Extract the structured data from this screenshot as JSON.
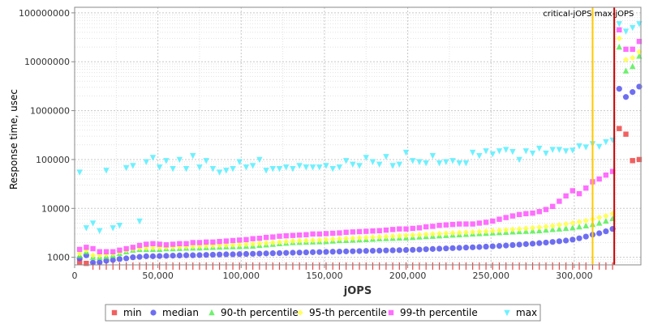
{
  "chart_data": {
    "type": "scatter",
    "title": "",
    "xlabel": "jOPS",
    "ylabel": "Response time, usec",
    "xlim": [
      0,
      340000
    ],
    "ylim": [
      700,
      130000000
    ],
    "yscale": "log",
    "grid": true,
    "legend_position": "bottom",
    "x_ticks": [
      0,
      50000,
      100000,
      150000,
      200000,
      250000,
      300000
    ],
    "x_tick_labels": [
      "0",
      "50,000",
      "100,000",
      "150,000",
      "200,000",
      "250,000",
      "300,000"
    ],
    "y_ticks": [
      1000,
      10000,
      100000,
      1000000,
      10000000,
      100000000
    ],
    "y_tick_labels": [
      "1000",
      "10000",
      "100000",
      "1000000",
      "10000000",
      "100000000"
    ],
    "markers": [
      {
        "name": "critical-jOPS",
        "label": "critical-jOPS",
        "x": 311000,
        "color": "#ffc800"
      },
      {
        "name": "max-jOPS",
        "label": "max-jOPS",
        "x": 324000,
        "color": "#cc0000"
      }
    ],
    "series": [
      {
        "name": "min",
        "symbol": "square",
        "color": "#ee4444",
        "x": [
          3000,
          7000,
          11000,
          15000,
          19000,
          23000,
          27000,
          31000,
          35000,
          39000,
          43000,
          47000,
          51000,
          55000,
          59000,
          63000,
          67000,
          71000,
          75000,
          79000,
          83000,
          87000,
          91000,
          95000,
          99000,
          103000,
          107000,
          111000,
          115000,
          119000,
          123000,
          127000,
          131000,
          135000,
          139000,
          143000,
          147000,
          151000,
          155000,
          159000,
          163000,
          167000,
          171000,
          175000,
          179000,
          183000,
          187000,
          191000,
          195000,
          199000,
          203000,
          207000,
          211000,
          215000,
          219000,
          223000,
          227000,
          231000,
          235000,
          239000,
          243000,
          247000,
          251000,
          255000,
          259000,
          263000,
          267000,
          271000,
          275000,
          279000,
          283000,
          287000,
          291000,
          295000,
          299000,
          303000,
          307000,
          311000,
          315000,
          319000,
          323000,
          327000,
          331000,
          335000,
          339000
        ],
        "values": [
          800,
          750,
          700,
          700,
          700,
          700,
          700,
          700,
          700,
          700,
          700,
          700,
          700,
          700,
          700,
          700,
          700,
          700,
          700,
          700,
          700,
          700,
          700,
          700,
          700,
          700,
          700,
          700,
          700,
          700,
          700,
          700,
          700,
          700,
          700,
          700,
          700,
          700,
          700,
          700,
          700,
          700,
          700,
          700,
          700,
          700,
          700,
          700,
          700,
          700,
          700,
          700,
          700,
          700,
          700,
          700,
          700,
          700,
          700,
          700,
          700,
          700,
          700,
          700,
          700,
          700,
          700,
          700,
          700,
          700,
          700,
          700,
          700,
          700,
          700,
          700,
          700,
          700,
          700,
          700,
          700,
          430000,
          330000,
          95000,
          100000
        ]
      },
      {
        "name": "median",
        "symbol": "circle",
        "color": "#5555ee",
        "x": [
          3000,
          7000,
          11000,
          15000,
          19000,
          23000,
          27000,
          31000,
          35000,
          39000,
          43000,
          47000,
          51000,
          55000,
          59000,
          63000,
          67000,
          71000,
          75000,
          79000,
          83000,
          87000,
          91000,
          95000,
          99000,
          103000,
          107000,
          111000,
          115000,
          119000,
          123000,
          127000,
          131000,
          135000,
          139000,
          143000,
          147000,
          151000,
          155000,
          159000,
          163000,
          167000,
          171000,
          175000,
          179000,
          183000,
          187000,
          191000,
          195000,
          199000,
          203000,
          207000,
          211000,
          215000,
          219000,
          223000,
          227000,
          231000,
          235000,
          239000,
          243000,
          247000,
          251000,
          255000,
          259000,
          263000,
          267000,
          271000,
          275000,
          279000,
          283000,
          287000,
          291000,
          295000,
          299000,
          303000,
          307000,
          311000,
          315000,
          319000,
          323000,
          327000,
          331000,
          335000,
          339000
        ],
        "values": [
          950,
          1100,
          780,
          790,
          850,
          880,
          920,
          950,
          1000,
          1020,
          1050,
          1050,
          1060,
          1070,
          1080,
          1090,
          1100,
          1100,
          1110,
          1120,
          1130,
          1140,
          1150,
          1150,
          1160,
          1170,
          1180,
          1190,
          1200,
          1210,
          1220,
          1230,
          1240,
          1250,
          1260,
          1270,
          1280,
          1290,
          1300,
          1310,
          1320,
          1330,
          1340,
          1350,
          1360,
          1370,
          1380,
          1390,
          1400,
          1410,
          1420,
          1440,
          1460,
          1480,
          1500,
          1520,
          1540,
          1560,
          1580,
          1600,
          1620,
          1650,
          1680,
          1710,
          1740,
          1780,
          1820,
          1860,
          1900,
          1950,
          2000,
          2060,
          2130,
          2200,
          2300,
          2450,
          2650,
          2900,
          3100,
          3400,
          3800,
          2800000,
          1900000,
          2400000,
          3100000
        ]
      },
      {
        "name": "90-th percentile",
        "symbol": "triangle-up",
        "color": "#55ee55",
        "x": [
          3000,
          7000,
          11000,
          15000,
          19000,
          23000,
          27000,
          31000,
          35000,
          39000,
          43000,
          47000,
          51000,
          55000,
          59000,
          63000,
          67000,
          71000,
          75000,
          79000,
          83000,
          87000,
          91000,
          95000,
          99000,
          103000,
          107000,
          111000,
          115000,
          119000,
          123000,
          127000,
          131000,
          135000,
          139000,
          143000,
          147000,
          151000,
          155000,
          159000,
          163000,
          167000,
          171000,
          175000,
          179000,
          183000,
          187000,
          191000,
          195000,
          199000,
          203000,
          207000,
          211000,
          215000,
          219000,
          223000,
          227000,
          231000,
          235000,
          239000,
          243000,
          247000,
          251000,
          255000,
          259000,
          263000,
          267000,
          271000,
          275000,
          279000,
          283000,
          287000,
          291000,
          295000,
          299000,
          303000,
          307000,
          311000,
          315000,
          319000,
          323000,
          327000,
          331000,
          335000,
          339000
        ],
        "values": [
          1100,
          1300,
          1000,
          1000,
          1050,
          1100,
          1200,
          1300,
          1400,
          1450,
          1450,
          1450,
          1450,
          1500,
          1500,
          1520,
          1540,
          1550,
          1560,
          1580,
          1600,
          1620,
          1640,
          1650,
          1660,
          1680,
          1700,
          1750,
          1800,
          1850,
          1900,
          1950,
          2000,
          2020,
          2040,
          2060,
          2080,
          2100,
          2150,
          2200,
          2220,
          2250,
          2280,
          2300,
          2350,
          2400,
          2420,
          2450,
          2480,
          2500,
          2550,
          2600,
          2650,
          2700,
          2750,
          2800,
          2850,
          2900,
          2950,
          3000,
          3050,
          3100,
          3150,
          3200,
          3250,
          3300,
          3350,
          3400,
          3450,
          3500,
          3600,
          3700,
          3800,
          3900,
          4000,
          4200,
          4400,
          4700,
          5000,
          5500,
          6200,
          20000000,
          6500000,
          8000000,
          13000000
        ]
      },
      {
        "name": "95-th percentile",
        "symbol": "diamond",
        "color": "#ffff44",
        "x": [
          3000,
          7000,
          11000,
          15000,
          19000,
          23000,
          27000,
          31000,
          35000,
          39000,
          43000,
          47000,
          51000,
          55000,
          59000,
          63000,
          67000,
          71000,
          75000,
          79000,
          83000,
          87000,
          91000,
          95000,
          99000,
          103000,
          107000,
          111000,
          115000,
          119000,
          123000,
          127000,
          131000,
          135000,
          139000,
          143000,
          147000,
          151000,
          155000,
          159000,
          163000,
          167000,
          171000,
          175000,
          179000,
          183000,
          187000,
          191000,
          195000,
          199000,
          203000,
          207000,
          211000,
          215000,
          219000,
          223000,
          227000,
          231000,
          235000,
          239000,
          243000,
          247000,
          251000,
          255000,
          259000,
          263000,
          267000,
          271000,
          275000,
          279000,
          283000,
          287000,
          291000,
          295000,
          299000,
          303000,
          307000,
          311000,
          315000,
          319000,
          323000,
          327000,
          331000,
          335000,
          339000
        ],
        "values": [
          1200,
          1400,
          1100,
          1100,
          1150,
          1200,
          1300,
          1400,
          1500,
          1550,
          1560,
          1570,
          1580,
          1600,
          1620,
          1640,
          1660,
          1680,
          1700,
          1720,
          1740,
          1760,
          1780,
          1800,
          1820,
          1850,
          1880,
          1920,
          1960,
          2000,
          2050,
          2100,
          2150,
          2180,
          2200,
          2230,
          2260,
          2300,
          2350,
          2400,
          2430,
          2460,
          2500,
          2540,
          2580,
          2620,
          2660,
          2700,
          2750,
          2800,
          2850,
          2900,
          2950,
          3000,
          3050,
          3100,
          3150,
          3200,
          3250,
          3300,
          3350,
          3400,
          3480,
          3560,
          3640,
          3720,
          3800,
          3900,
          4000,
          4100,
          4250,
          4400,
          4600,
          4800,
          5000,
          5300,
          5600,
          6000,
          6500,
          7000,
          7800,
          30000000,
          11000000,
          12000000,
          16000000
        ]
      },
      {
        "name": "99-th percentile",
        "symbol": "square",
        "color": "#ff55ff",
        "x": [
          3000,
          7000,
          11000,
          15000,
          19000,
          23000,
          27000,
          31000,
          35000,
          39000,
          43000,
          47000,
          51000,
          55000,
          59000,
          63000,
          67000,
          71000,
          75000,
          79000,
          83000,
          87000,
          91000,
          95000,
          99000,
          103000,
          107000,
          111000,
          115000,
          119000,
          123000,
          127000,
          131000,
          135000,
          139000,
          143000,
          147000,
          151000,
          155000,
          159000,
          163000,
          167000,
          171000,
          175000,
          179000,
          183000,
          187000,
          191000,
          195000,
          199000,
          203000,
          207000,
          211000,
          215000,
          219000,
          223000,
          227000,
          231000,
          235000,
          239000,
          243000,
          247000,
          251000,
          255000,
          259000,
          263000,
          267000,
          271000,
          275000,
          279000,
          283000,
          287000,
          291000,
          295000,
          299000,
          303000,
          307000,
          311000,
          315000,
          319000,
          323000,
          327000,
          331000,
          335000,
          339000
        ],
        "values": [
          1450,
          1600,
          1500,
          1300,
          1300,
          1300,
          1400,
          1500,
          1600,
          1750,
          1850,
          1900,
          1850,
          1800,
          1850,
          1900,
          1900,
          2000,
          2000,
          2050,
          2050,
          2100,
          2150,
          2200,
          2250,
          2300,
          2400,
          2450,
          2550,
          2600,
          2700,
          2750,
          2800,
          2850,
          2900,
          3000,
          3000,
          3050,
          3100,
          3150,
          3250,
          3300,
          3350,
          3400,
          3450,
          3500,
          3600,
          3700,
          3800,
          3800,
          3900,
          4000,
          4200,
          4300,
          4500,
          4600,
          4700,
          4800,
          4800,
          4800,
          5000,
          5200,
          5500,
          6000,
          6500,
          7000,
          7500,
          7800,
          8000,
          8600,
          9500,
          11000,
          14000,
          18000,
          23000,
          20000,
          26000,
          35000,
          40000,
          48000,
          57000,
          45000000,
          18000000,
          18000000,
          26000000
        ]
      },
      {
        "name": "max",
        "symbol": "triangle-down",
        "color": "#55eeff",
        "x": [
          3000,
          7000,
          11000,
          15000,
          19000,
          23000,
          27000,
          31000,
          35000,
          39000,
          43000,
          47000,
          51000,
          55000,
          59000,
          63000,
          67000,
          71000,
          75000,
          79000,
          83000,
          87000,
          91000,
          95000,
          99000,
          103000,
          107000,
          111000,
          115000,
          119000,
          123000,
          127000,
          131000,
          135000,
          139000,
          143000,
          147000,
          151000,
          155000,
          159000,
          163000,
          167000,
          171000,
          175000,
          179000,
          183000,
          187000,
          191000,
          195000,
          199000,
          203000,
          207000,
          211000,
          215000,
          219000,
          223000,
          227000,
          231000,
          235000,
          239000,
          243000,
          247000,
          251000,
          255000,
          259000,
          263000,
          267000,
          271000,
          275000,
          279000,
          283000,
          287000,
          291000,
          295000,
          299000,
          303000,
          307000,
          311000,
          315000,
          319000,
          323000,
          327000,
          331000,
          335000,
          339000
        ],
        "values": [
          55000,
          4000,
          5000,
          3500,
          60000,
          4000,
          4500,
          68000,
          75000,
          5500,
          90000,
          110000,
          70000,
          95000,
          65000,
          100000,
          65000,
          120000,
          70000,
          95000,
          65000,
          55000,
          60000,
          65000,
          90000,
          70000,
          75000,
          100000,
          60000,
          65000,
          65000,
          70000,
          65000,
          75000,
          70000,
          70000,
          70000,
          75000,
          65000,
          70000,
          95000,
          80000,
          75000,
          110000,
          90000,
          80000,
          115000,
          75000,
          80000,
          140000,
          95000,
          90000,
          85000,
          120000,
          85000,
          90000,
          95000,
          85000,
          85000,
          140000,
          120000,
          150000,
          130000,
          150000,
          160000,
          145000,
          100000,
          150000,
          135000,
          170000,
          135000,
          160000,
          160000,
          150000,
          155000,
          190000,
          180000,
          210000,
          185000,
          230000,
          250000,
          60000000,
          42000000,
          50000000,
          60000000
        ]
      }
    ]
  }
}
